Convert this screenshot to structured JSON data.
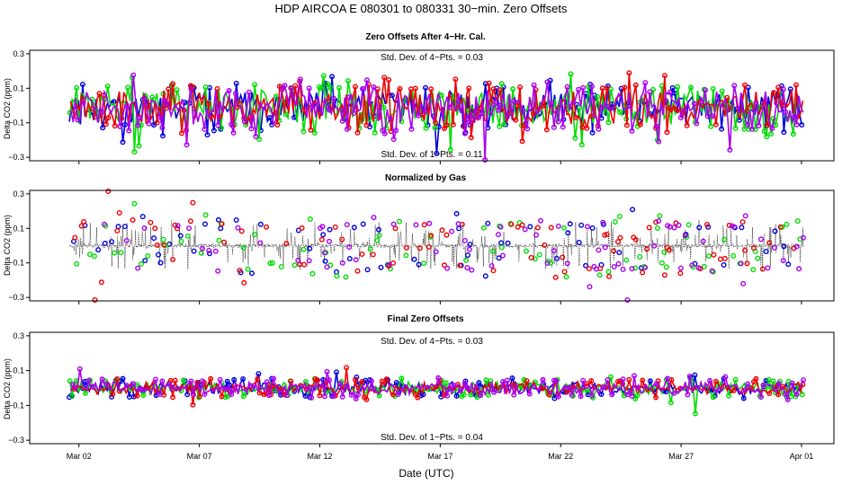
{
  "chart_data": {
    "type": "line",
    "title": "HDP    AIRCOA E    080301 to 080331    30−min. Zero Offsets",
    "xlabel": "Date (UTC)",
    "x_ticks": [
      "Mar 02",
      "Mar 07",
      "Mar 12",
      "Mar 17",
      "Mar 22",
      "Mar 27",
      "Apr 01"
    ],
    "x_tick_days": [
      1,
      6,
      11,
      16,
      21,
      26,
      31
    ],
    "xlim": [
      0,
      31.3
    ],
    "series_colors": [
      "#0000dd",
      "#00dd00",
      "#ee0000",
      "#aa00ee",
      "#000000"
    ],
    "panels": [
      {
        "title": "Zero Offsets After 4−Hr. Cal.",
        "ylabel": "Delta CO2 (ppm)",
        "ylim": [
          -0.32,
          0.32
        ],
        "y_ticks": [
          "0.3",
          "0.1",
          "−0.1",
          "−0.3"
        ],
        "y_tick_values": [
          0.3,
          0.1,
          -0.1,
          -0.3
        ],
        "stat_top": "Std. Dev. of 4−Pts. = 0.03",
        "stat_bottom": "Std. Dev. of 1−Pts. = 0.11",
        "spread": 0.11,
        "baseline": -0.01,
        "show_black": false,
        "seed": 11
      },
      {
        "title": "Normalized by Gas",
        "ylabel": "Delta CO2 (ppm)",
        "ylim": [
          -0.32,
          0.32
        ],
        "y_ticks": [
          "0.3",
          "0.1",
          "−0.1",
          "−0.3"
        ],
        "y_tick_values": [
          0.3,
          0.1,
          -0.1,
          -0.3
        ],
        "stat_top": "",
        "stat_bottom": "",
        "spread": 0.11,
        "baseline": 0.0,
        "show_black": true,
        "seed": 23
      },
      {
        "title": "Final Zero Offsets",
        "ylabel": "Delta CO2 (ppm)",
        "ylim": [
          -0.32,
          0.32
        ],
        "y_ticks": [
          "0.3",
          "0.1",
          "−0.1",
          "−0.3"
        ],
        "y_tick_values": [
          0.3,
          0.1,
          -0.1,
          -0.3
        ],
        "stat_top": "Std. Dev. of 4−Pts. = 0.03",
        "stat_bottom": "Std. Dev. of 1−Pts. = 0.04",
        "spread": 0.04,
        "baseline": 0.0,
        "show_black": false,
        "seed": 37
      }
    ]
  }
}
